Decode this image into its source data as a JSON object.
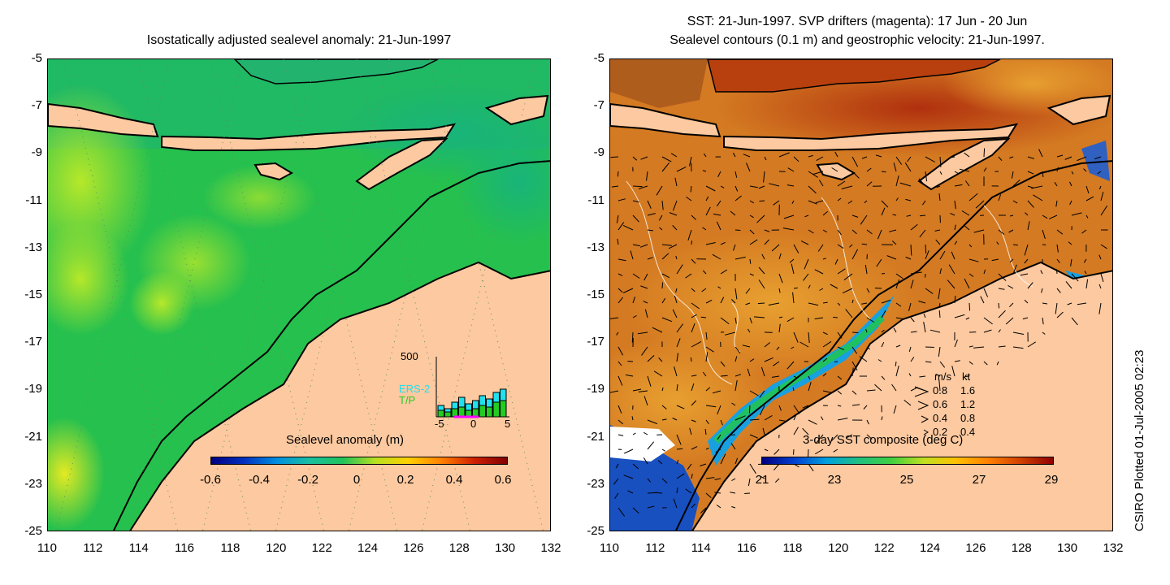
{
  "left_panel": {
    "title": "Isostatically adjusted sealevel anomaly: 21-Jun-1997",
    "colorbar": {
      "title": "Sealevel anomaly (m)",
      "labels": [
        "-0.6",
        "-0.4",
        "-0.2",
        "0",
        "0.2",
        "0.4",
        "0.6"
      ]
    },
    "inset": {
      "ymax_label": "500",
      "series_names": [
        "ERS-2",
        "T/P"
      ],
      "xtick_labels": [
        "-5",
        "0",
        "5"
      ],
      "colors": {
        "ers2": "#22e0ee",
        "tp": "#22cc22",
        "window": "#ff00ff"
      }
    }
  },
  "right_panel": {
    "title_line1": "SST: 21-Jun-1997. SVP drifters (magenta): 17 Jun - 20 Jun",
    "title_line2": "Sealevel contours (0.1 m) and geostrophic velocity: 21-Jun-1997.",
    "colorbar": {
      "title": "3-day SST composite (deg C)",
      "labels": [
        "21",
        "23",
        "25",
        "27",
        "29"
      ]
    },
    "velocity_legend": {
      "header_ms": "m/s",
      "header_kt": "kt",
      "rows": [
        {
          "ms": "0.8",
          "kt": "1.6"
        },
        {
          "ms": "0.6",
          "kt": "1.2"
        },
        {
          "ms": "0.4",
          "kt": "0.8"
        },
        {
          "ms": "0.2",
          "kt": "0.4"
        }
      ]
    }
  },
  "axes": {
    "x_ticks": [
      "110",
      "112",
      "114",
      "116",
      "118",
      "120",
      "122",
      "124",
      "126",
      "128",
      "130",
      "132"
    ],
    "y_ticks": [
      "-5",
      "-7",
      "-9",
      "-11",
      "-13",
      "-15",
      "-17",
      "-19",
      "-21",
      "-23",
      "-25"
    ]
  },
  "credit": "CSIRO Plotted 01-Jul-2005 02:23",
  "colors": {
    "land": "#fdc9a0",
    "sea_left": "#22c25a",
    "sea_right": "#d9781e"
  }
}
